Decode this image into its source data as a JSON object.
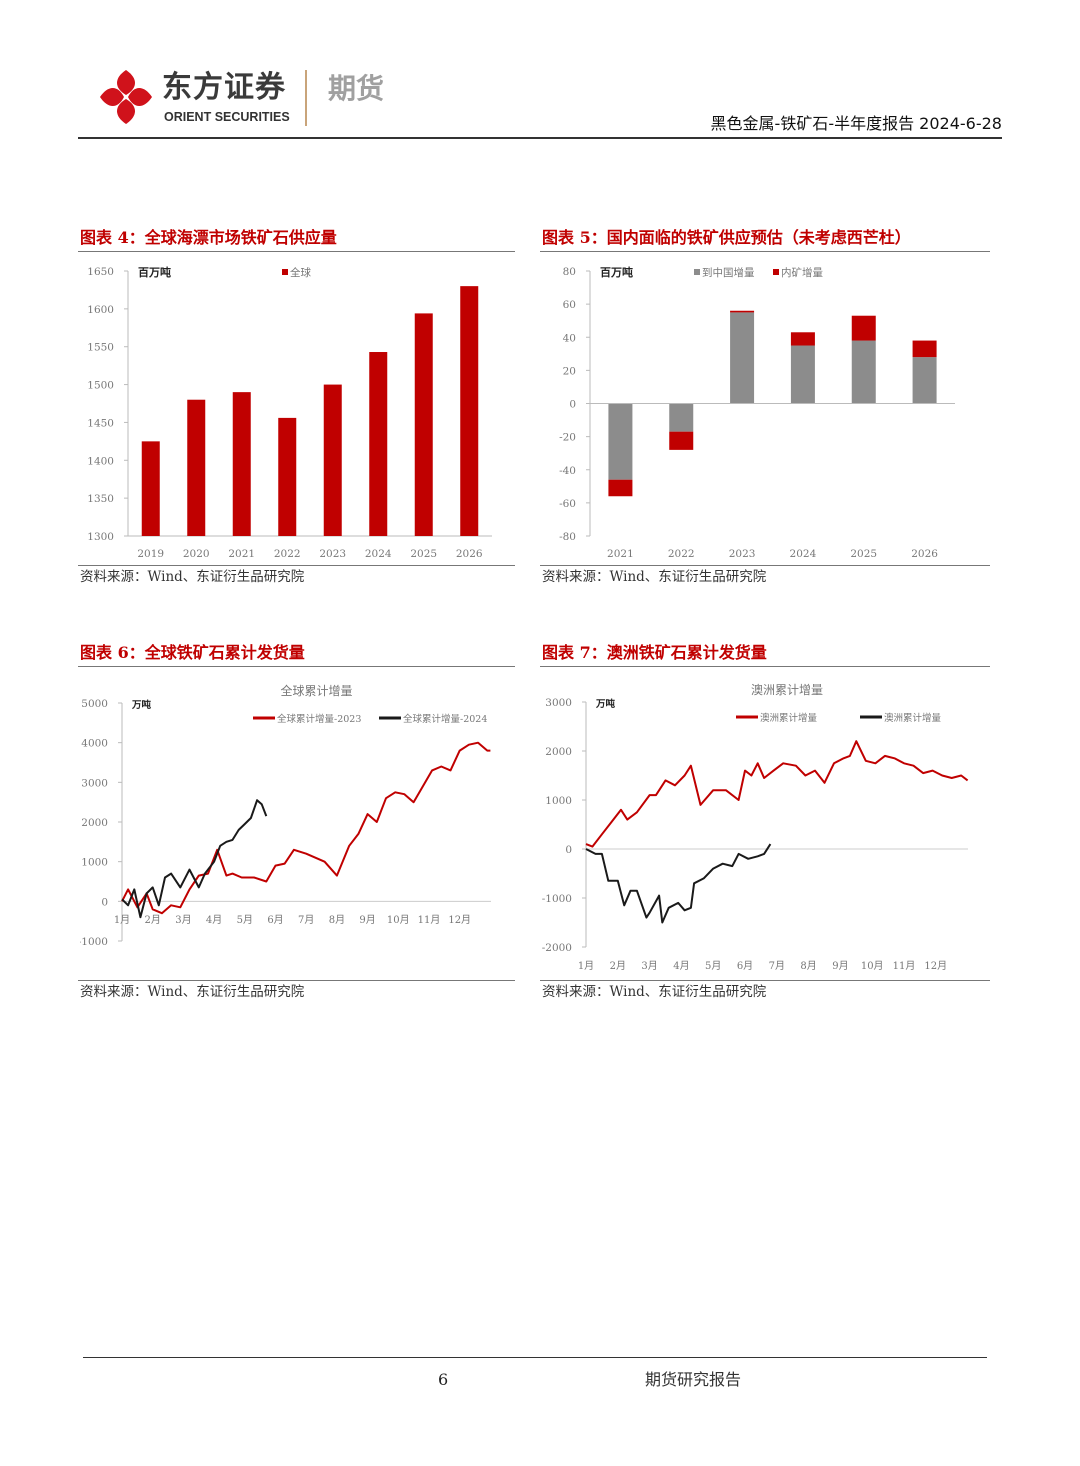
{
  "header": {
    "logo_cn": "东方证券",
    "logo_en": "ORIENT SECURITIES",
    "logo_division": "期货",
    "report_title": "黑色金属-铁矿石-半年度报告 2024-6-28"
  },
  "figures": [
    {
      "title": "图表 4：全球海漂市场铁矿石供应量",
      "source": "资料来源：Wind、东证衍生品研究院"
    },
    {
      "title": "图表 5：国内面临的铁矿供应预估（未考虑西芒杜）",
      "source": "资料来源：Wind、东证衍生品研究院"
    },
    {
      "title": "图表 6：全球铁矿石累计发货量",
      "source": "资料来源：Wind、东证衍生品研究院"
    },
    {
      "title": "图表 7：澳洲铁矿石累计发货量",
      "source": "资料来源：Wind、东证衍生品研究院"
    }
  ],
  "chart_data": [
    {
      "type": "bar",
      "unit": "百万吨",
      "categories": [
        "2019",
        "2020",
        "2021",
        "2022",
        "2023",
        "2024",
        "2025",
        "2026"
      ],
      "series": [
        {
          "name": "全球",
          "values": [
            1425,
            1480,
            1490,
            1456,
            1500,
            1543,
            1594,
            1630
          ],
          "color": "#c00000"
        }
      ],
      "ylim": [
        1300,
        1650
      ],
      "yticks": [
        "1650",
        "1600",
        "1550",
        "1500",
        "1450",
        "1400",
        "1350",
        "1300"
      ],
      "ytick_values": [
        1650,
        1600,
        1550,
        1500,
        1450,
        1400,
        1350,
        1300
      ]
    },
    {
      "type": "bar",
      "stacked": true,
      "unit": "百万吨",
      "categories": [
        "2021",
        "2022",
        "2023",
        "2024",
        "2025",
        "2026"
      ],
      "series": [
        {
          "name": "到中国增量",
          "values": [
            -46,
            -17,
            55,
            35,
            38,
            28
          ],
          "color": "#8c8c8c"
        },
        {
          "name": "内矿增量",
          "values": [
            -10,
            -11,
            1,
            8,
            15,
            10
          ],
          "color": "#c00000"
        }
      ],
      "ylim": [
        -80,
        80
      ],
      "yticks": [
        "80",
        "60",
        "40",
        "20",
        "0",
        "-20",
        "-40",
        "-60",
        "-80"
      ],
      "ytick_values": [
        80,
        60,
        40,
        20,
        0,
        -20,
        -40,
        -60,
        -80
      ]
    },
    {
      "type": "line",
      "title": "全球累计增量",
      "unit": "万吨",
      "xticks": [
        "1月",
        "2月",
        "3月",
        "4月",
        "5月",
        "6月",
        "7月",
        "8月",
        "9月",
        "10月",
        "11月",
        "12月"
      ],
      "xlim": [
        0,
        12
      ],
      "ylim": [
        -1000,
        5000
      ],
      "yticks": [
        "5000",
        "4000",
        "3000",
        "2000",
        "1000",
        "0",
        "-1000"
      ],
      "ytick_values": [
        5000,
        4000,
        3000,
        2000,
        1000,
        0,
        -1000
      ],
      "series": [
        {
          "name": "全球累计增量-2023",
          "color": "#c00000",
          "x": [
            0,
            0.2,
            0.5,
            0.8,
            1.0,
            1.3,
            1.6,
            1.9,
            2.2,
            2.5,
            2.8,
            3.1,
            3.4,
            3.6,
            3.9,
            4.3,
            4.7,
            5.0,
            5.3,
            5.6,
            6.0,
            6.3,
            6.6,
            7.0,
            7.4,
            7.7,
            8.0,
            8.3,
            8.6,
            8.9,
            9.2,
            9.5,
            9.8,
            10.1,
            10.4,
            10.7,
            11.0,
            11.3,
            11.6,
            11.9,
            12.0
          ],
          "y": [
            0,
            300,
            -150,
            200,
            -200,
            -300,
            -100,
            -150,
            300,
            650,
            700,
            1300,
            650,
            700,
            600,
            600,
            500,
            900,
            950,
            1300,
            1200,
            1100,
            1000,
            650,
            1400,
            1700,
            2200,
            2000,
            2600,
            2750,
            2700,
            2500,
            2900,
            3300,
            3400,
            3300,
            3800,
            3950,
            4000,
            3800,
            3800
          ]
        },
        {
          "name": "全球累计增量-2024",
          "color": "#1a1a1a",
          "x": [
            0,
            0.2,
            0.4,
            0.6,
            0.8,
            1.0,
            1.2,
            1.4,
            1.6,
            1.9,
            2.2,
            2.5,
            2.7,
            3.0,
            3.2,
            3.4,
            3.6,
            3.8,
            4.0,
            4.2,
            4.4,
            4.55,
            4.7
          ],
          "y": [
            50,
            -100,
            300,
            -400,
            200,
            350,
            -100,
            600,
            700,
            350,
            800,
            350,
            700,
            1000,
            1400,
            1500,
            1550,
            1800,
            1950,
            2100,
            2550,
            2450,
            2150
          ]
        }
      ]
    },
    {
      "type": "line",
      "title": "澳洲累计增量",
      "unit": "万吨",
      "xticks": [
        "1月",
        "2月",
        "3月",
        "4月",
        "5月",
        "6月",
        "7月",
        "8月",
        "9月",
        "10月",
        "11月",
        "12月"
      ],
      "xlim": [
        0,
        12
      ],
      "ylim": [
        -2000,
        3000
      ],
      "yticks": [
        "3000",
        "2000",
        "1000",
        "0",
        "-1000",
        "-2000"
      ],
      "ytick_values": [
        3000,
        2000,
        1000,
        0,
        -1000,
        -2000
      ],
      "series": [
        {
          "name": "澳洲累计增量",
          "color": "#c00000",
          "x": [
            0,
            0.2,
            0.5,
            0.8,
            1.1,
            1.3,
            1.6,
            2.0,
            2.2,
            2.5,
            2.8,
            3.1,
            3.3,
            3.6,
            4.0,
            4.4,
            4.8,
            5.0,
            5.2,
            5.4,
            5.6,
            5.9,
            6.2,
            6.6,
            6.9,
            7.2,
            7.5,
            7.8,
            8.1,
            8.3,
            8.5,
            8.8,
            9.1,
            9.4,
            9.7,
            10.0,
            10.3,
            10.6,
            10.9,
            11.2,
            11.5,
            11.8,
            12.0
          ],
          "y": [
            100,
            50,
            300,
            550,
            800,
            600,
            750,
            1100,
            1100,
            1400,
            1300,
            1500,
            1700,
            900,
            1200,
            1200,
            1000,
            1600,
            1500,
            1750,
            1450,
            1600,
            1750,
            1700,
            1500,
            1600,
            1350,
            1750,
            1850,
            1900,
            2200,
            1800,
            1750,
            1900,
            1850,
            1750,
            1700,
            1550,
            1600,
            1500,
            1450,
            1500,
            1400
          ]
        },
        {
          "name": "澳洲累计增量",
          "color": "#1a1a1a",
          "x": [
            0,
            0.3,
            0.5,
            0.7,
            1.0,
            1.2,
            1.4,
            1.6,
            1.9,
            2.0,
            2.3,
            2.4,
            2.6,
            2.9,
            3.1,
            3.3,
            3.4,
            3.7,
            4.0,
            4.3,
            4.6,
            4.8,
            5.1,
            5.4,
            5.6,
            5.8
          ],
          "y": [
            0,
            -100,
            -100,
            -650,
            -650,
            -1150,
            -850,
            -850,
            -1400,
            -1300,
            -950,
            -1500,
            -1200,
            -1100,
            -1250,
            -1200,
            -700,
            -600,
            -400,
            -300,
            -350,
            -100,
            -200,
            -150,
            -100,
            100
          ]
        }
      ]
    }
  ],
  "footer": {
    "page_number": "6",
    "label": "期货研究报告"
  }
}
